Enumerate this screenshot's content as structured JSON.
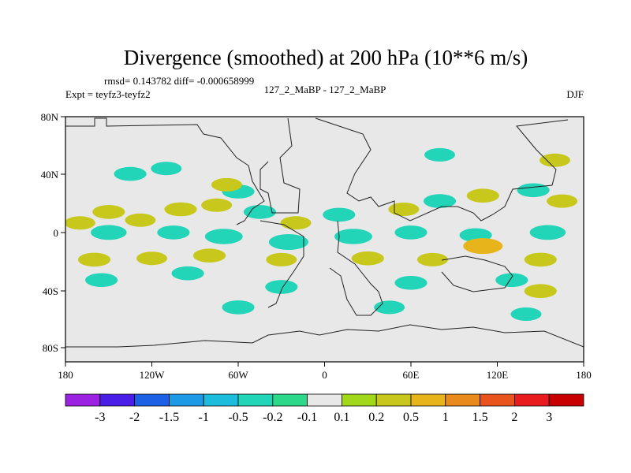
{
  "chart_data": {
    "type": "heatmap",
    "title": "Divergence (smoothed) at 200 hPa (10**6 m/s)",
    "stats_line": "rmsd= 0.143782 diff= -0.000658999",
    "experiment_label": "Expt = teyfz3-teyfz2",
    "center_label": "127_2_MaBP - 127_2_MaBP",
    "season_label": "DJF",
    "x_axis": {
      "range": [
        -180,
        180
      ],
      "ticks": [
        -180,
        -120,
        -60,
        0,
        60,
        120,
        180
      ],
      "tick_labels": [
        "180",
        "120W",
        "60W",
        "0",
        "60E",
        "120E",
        "180"
      ]
    },
    "y_axis": {
      "range": [
        -90,
        90
      ],
      "ticks": [
        80,
        40,
        0,
        -40,
        -80
      ],
      "tick_labels": [
        "80N",
        "40N",
        "0",
        "40S",
        "80S"
      ]
    },
    "colorbar": {
      "labels": [
        "-3",
        "-2",
        "-1.5",
        "-1",
        "-0.5",
        "-0.2",
        "-0.1",
        "0.1",
        "0.2",
        "0.5",
        "1",
        "1.5",
        "2",
        "3"
      ],
      "colors": [
        "#9a22e0",
        "#4a1ee6",
        "#1c60e6",
        "#1c9ae6",
        "#1cbcdc",
        "#22d4b8",
        "#2ed88a",
        "#e8e8e8",
        "#a2d81a",
        "#c8c81c",
        "#e8b41c",
        "#e88a1c",
        "#e8541c",
        "#e81c1c",
        "#c80000"
      ]
    },
    "blobs": [
      {
        "lon": -170,
        "lat": 12,
        "value": 0.25
      },
      {
        "lon": -150,
        "lat": 20,
        "value": 0.3
      },
      {
        "lon": -128,
        "lat": 14,
        "value": 0.25
      },
      {
        "lon": -100,
        "lat": 22,
        "value": 0.3
      },
      {
        "lon": -75,
        "lat": 25,
        "value": 0.25
      },
      {
        "lon": -60,
        "lat": 35,
        "value": -0.3
      },
      {
        "lon": -68,
        "lat": 40,
        "value": 0.25
      },
      {
        "lon": -45,
        "lat": 20,
        "value": -0.3
      },
      {
        "lon": -20,
        "lat": 12,
        "value": 0.25
      },
      {
        "lon": 10,
        "lat": 18,
        "value": -0.3
      },
      {
        "lon": 55,
        "lat": 22,
        "value": 0.25
      },
      {
        "lon": 80,
        "lat": 28,
        "value": -0.3
      },
      {
        "lon": 110,
        "lat": 32,
        "value": 0.3
      },
      {
        "lon": 145,
        "lat": 36,
        "value": -0.3
      },
      {
        "lon": 165,
        "lat": 28,
        "value": 0.25
      },
      {
        "lon": -135,
        "lat": 48,
        "value": -0.3
      },
      {
        "lon": -150,
        "lat": 5,
        "value": -0.4
      },
      {
        "lon": -105,
        "lat": 5,
        "value": -0.3
      },
      {
        "lon": -70,
        "lat": 2,
        "value": -0.45
      },
      {
        "lon": -25,
        "lat": -2,
        "value": -0.5
      },
      {
        "lon": 20,
        "lat": 2,
        "value": -0.45
      },
      {
        "lon": 60,
        "lat": 5,
        "value": -0.3
      },
      {
        "lon": 105,
        "lat": 3,
        "value": -0.3
      },
      {
        "lon": 155,
        "lat": 5,
        "value": -0.4
      },
      {
        "lon": -160,
        "lat": -15,
        "value": 0.3
      },
      {
        "lon": -120,
        "lat": -14,
        "value": 0.25
      },
      {
        "lon": -80,
        "lat": -12,
        "value": 0.3
      },
      {
        "lon": -30,
        "lat": -15,
        "value": 0.25
      },
      {
        "lon": 30,
        "lat": -14,
        "value": 0.3
      },
      {
        "lon": 75,
        "lat": -15,
        "value": 0.25
      },
      {
        "lon": 110,
        "lat": -5,
        "value": 0.5
      },
      {
        "lon": 150,
        "lat": -15,
        "value": 0.3
      },
      {
        "lon": -155,
        "lat": -30,
        "value": -0.3
      },
      {
        "lon": -95,
        "lat": -25,
        "value": -0.3
      },
      {
        "lon": -30,
        "lat": -35,
        "value": -0.3
      },
      {
        "lon": 60,
        "lat": -32,
        "value": -0.3
      },
      {
        "lon": 130,
        "lat": -30,
        "value": -0.3
      },
      {
        "lon": 150,
        "lat": -38,
        "value": 0.3
      },
      {
        "lon": -60,
        "lat": -50,
        "value": -0.3
      },
      {
        "lon": 45,
        "lat": -50,
        "value": -0.25
      },
      {
        "lon": 140,
        "lat": -55,
        "value": -0.25
      },
      {
        "lon": 80,
        "lat": 62,
        "value": -0.25
      },
      {
        "lon": 160,
        "lat": 58,
        "value": 0.25
      },
      {
        "lon": -110,
        "lat": 52,
        "value": -0.25
      }
    ]
  }
}
